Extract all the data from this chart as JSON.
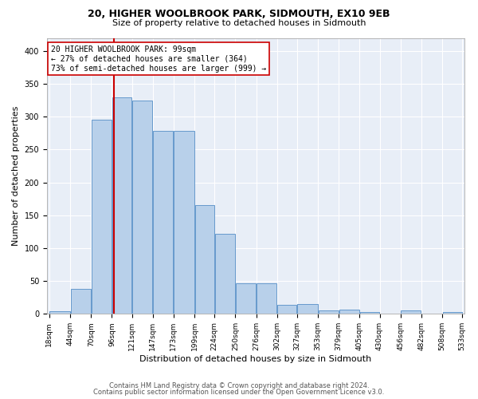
{
  "title1": "20, HIGHER WOOLBROOK PARK, SIDMOUTH, EX10 9EB",
  "title2": "Size of property relative to detached houses in Sidmouth",
  "xlabel": "Distribution of detached houses by size in Sidmouth",
  "ylabel": "Number of detached properties",
  "footer1": "Contains HM Land Registry data © Crown copyright and database right 2024.",
  "footer2": "Contains public sector information licensed under the Open Government Licence v3.0.",
  "annotation_line1": "20 HIGHER WOOLBROOK PARK: 99sqm",
  "annotation_line2": "← 27% of detached houses are smaller (364)",
  "annotation_line3": "73% of semi-detached houses are larger (999) →",
  "bin_edges": [
    18,
    44,
    70,
    96,
    121,
    147,
    173,
    199,
    224,
    250,
    276,
    302,
    327,
    353,
    379,
    405,
    430,
    456,
    482,
    508,
    533
  ],
  "bar_heights": [
    4,
    38,
    295,
    330,
    325,
    278,
    278,
    165,
    122,
    46,
    46,
    14,
    15,
    5,
    6,
    3,
    0,
    5,
    0,
    3
  ],
  "bar_color": "#b8d0ea",
  "bar_edge_color": "#6699cc",
  "vline_color": "#cc0000",
  "vline_x": 99,
  "tick_labels": [
    "18sqm",
    "44sqm",
    "70sqm",
    "96sqm",
    "121sqm",
    "147sqm",
    "173sqm",
    "199sqm",
    "224sqm",
    "250sqm",
    "276sqm",
    "302sqm",
    "327sqm",
    "353sqm",
    "379sqm",
    "405sqm",
    "430sqm",
    "456sqm",
    "482sqm",
    "508sqm",
    "533sqm"
  ],
  "ylim": [
    0,
    420
  ],
  "yticks": [
    0,
    50,
    100,
    150,
    200,
    250,
    300,
    350,
    400
  ],
  "plot_bg_color": "#e8eef7",
  "grid_color": "#ffffff",
  "title_fontsize": 9,
  "subtitle_fontsize": 8,
  "ylabel_fontsize": 8,
  "xlabel_fontsize": 8,
  "tick_fontsize": 6.5,
  "footer_fontsize": 6
}
